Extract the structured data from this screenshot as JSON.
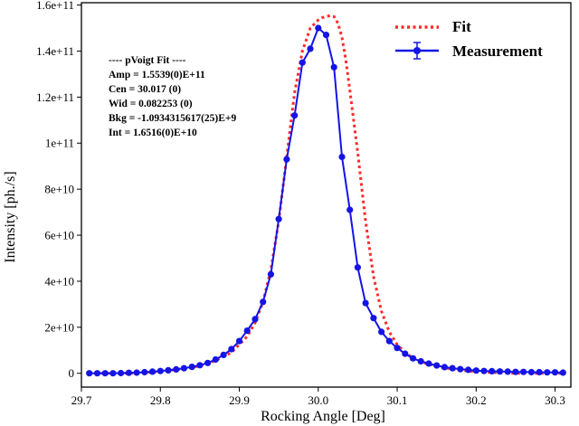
{
  "chart_data": {
    "type": "line",
    "xlabel": "Rocking Angle [Deg]",
    "ylabel": "Intensity [ph./s]",
    "xlim": [
      29.7,
      30.32
    ],
    "ylim": [
      -6000000000.0,
      161000000000.0
    ],
    "xticks": [
      29.7,
      29.8,
      29.9,
      30.0,
      30.1,
      30.2,
      30.3
    ],
    "xtick_labels": [
      "29.7",
      "29.8",
      "29.9",
      "30.0",
      "30.1",
      "30.2",
      "30.3"
    ],
    "yticks": [
      0,
      20000000000.0,
      40000000000.0,
      60000000000.0,
      80000000000.0,
      100000000000.0,
      120000000000.0,
      140000000000.0,
      160000000000.0
    ],
    "ytick_labels": [
      "0",
      "2e+10",
      "4e+10",
      "6e+10",
      "8e+10",
      "1e+11",
      "1.2e+11",
      "1.4e+11",
      "1.6e+11"
    ],
    "grid": false,
    "legend_position": "top-right",
    "annotation": {
      "title": "---- pVoigt Fit ----",
      "lines": [
        "Amp = 1.5539(0)E+11",
        "Cen = 30.017 (0)",
        "Wid = 0.082253 (0)",
        "Bkg = -1.0934315617(25)E+9",
        "Int = 1.6516(0)E+10"
      ]
    },
    "series": [
      {
        "name": "Fit",
        "style": "dotted",
        "color": "#ff2a2a",
        "x": [
          29.71,
          29.73,
          29.75,
          29.77,
          29.79,
          29.81,
          29.83,
          29.85,
          29.87,
          29.89,
          29.91,
          29.92,
          29.93,
          29.94,
          29.95,
          29.96,
          29.97,
          29.98,
          29.99,
          30.0,
          30.005,
          30.01,
          30.015,
          30.02,
          30.025,
          30.03,
          30.035,
          30.04,
          30.05,
          30.06,
          30.07,
          30.08,
          30.09,
          30.1,
          30.11,
          30.12,
          30.13,
          30.15,
          30.17,
          30.19,
          30.21,
          30.23,
          30.25,
          30.27,
          30.29,
          30.31
        ],
        "y": [
          0.0,
          0.0,
          0.0,
          100000000.0,
          500000000.0,
          1200000000.0,
          2000000000.0,
          3200000000.0,
          5500000000.0,
          9000000000.0,
          16000000000.0,
          22000000000.0,
          31000000000.0,
          45000000000.0,
          66000000000.0,
          94000000000.0,
          122000000000.0,
          140000000000.0,
          150000000000.0,
          153500000000.0,
          154500000000.0,
          155000000000.0,
          155400000000.0,
          155000000000.0,
          152000000000.0,
          146000000000.0,
          136000000000.0,
          123000000000.0,
          96000000000.0,
          66000000000.0,
          42000000000.0,
          27000000000.0,
          18000000000.0,
          12500000000.0,
          9000000000.0,
          6500000000.0,
          5000000000.0,
          3000000000.0,
          1800000000.0,
          1000000000.0,
          500000000.0,
          200000000.0,
          0.0,
          0.0,
          0.0,
          0.0
        ]
      },
      {
        "name": "Measurement",
        "style": "solid-markers",
        "color": "#1414e6",
        "x": [
          29.71,
          29.72,
          29.73,
          29.74,
          29.75,
          29.76,
          29.77,
          29.78,
          29.79,
          29.8,
          29.81,
          29.82,
          29.83,
          29.84,
          29.85,
          29.86,
          29.87,
          29.88,
          29.89,
          29.9,
          29.91,
          29.92,
          29.93,
          29.94,
          29.95,
          29.96,
          29.97,
          29.98,
          29.99,
          30.0,
          30.01,
          30.02,
          30.03,
          30.04,
          30.05,
          30.06,
          30.07,
          30.08,
          30.09,
          30.1,
          30.11,
          30.12,
          30.13,
          30.14,
          30.15,
          30.16,
          30.17,
          30.18,
          30.19,
          30.2,
          30.21,
          30.22,
          30.23,
          30.24,
          30.25,
          30.26,
          30.27,
          30.28,
          30.29,
          30.3,
          30.31
        ],
        "y": [
          0.0,
          0.0,
          0.0,
          0.0,
          100000000.0,
          200000000.0,
          300000000.0,
          500000000.0,
          700000000.0,
          1000000000.0,
          1300000000.0,
          1700000000.0,
          2200000000.0,
          2800000000.0,
          3500000000.0,
          4500000000.0,
          6000000000.0,
          8000000000.0,
          10500000000.0,
          14000000000.0,
          18500000000.0,
          23500000000.0,
          31000000000.0,
          43000000000.0,
          67000000000.0,
          93000000000.0,
          112000000000.0,
          135000000000.0,
          141000000000.0,
          150000000000.0,
          147000000000.0,
          133000000000.0,
          94000000000.0,
          71000000000.0,
          46000000000.0,
          30500000000.0,
          24000000000.0,
          18000000000.0,
          14000000000.0,
          11000000000.0,
          8500000000.0,
          6500000000.0,
          5200000000.0,
          4200000000.0,
          3400000000.0,
          2700000000.0,
          2200000000.0,
          1800000000.0,
          1500000000.0,
          1200000000.0,
          1000000000.0,
          900000000.0,
          800000000.0,
          700000000.0,
          600000000.0,
          600000000.0,
          500000000.0,
          500000000.0,
          400000000.0,
          400000000.0,
          300000000.0
        ]
      }
    ]
  }
}
